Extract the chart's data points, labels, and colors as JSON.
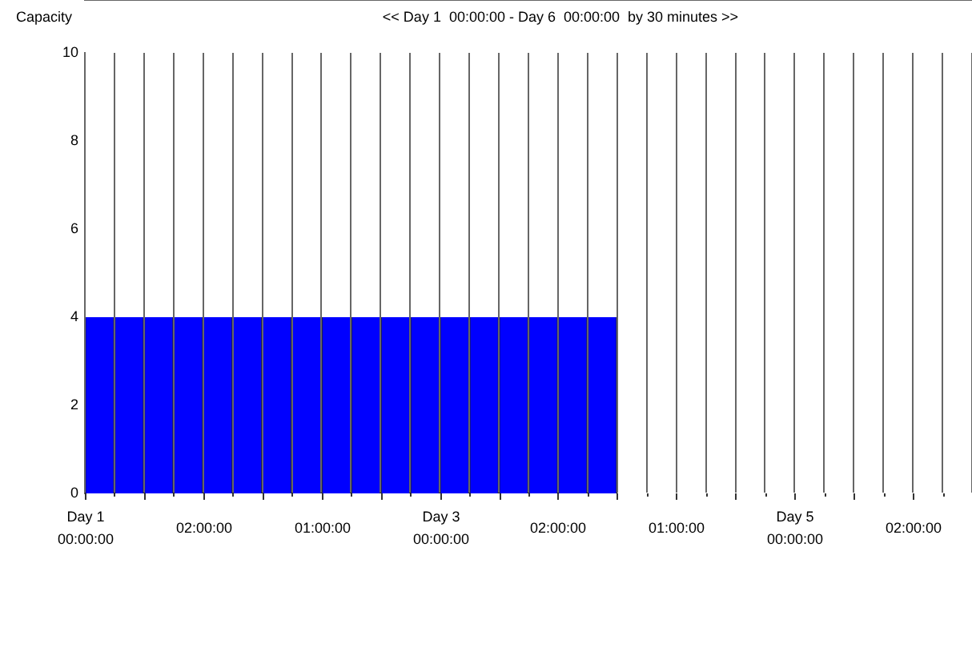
{
  "chart_data": {
    "type": "bar",
    "title": "<< Day 1  00:00:00 - Day 6  00:00:00  by 30 minutes >>",
    "ylabel": "Capacity",
    "categories": [
      "Day 1\n00:00:00",
      null,
      null,
      null,
      "02:00:00",
      null,
      null,
      null,
      "01:00:00",
      null,
      null,
      null,
      "Day 3\n00:00:00",
      null,
      null,
      null,
      "02:00:00",
      null,
      null,
      null,
      "01:00:00",
      null,
      null,
      null,
      "Day 5\n00:00:00",
      null,
      null,
      null,
      "02:00:00",
      null
    ],
    "series": [
      {
        "color": "#0000ff",
        "values": [
          4,
          4,
          4,
          4,
          4,
          4,
          4,
          4,
          4,
          4,
          4,
          4,
          4,
          4,
          4,
          4,
          4,
          4,
          null,
          null,
          null,
          null,
          null,
          null,
          null,
          null,
          null,
          null,
          null,
          null
        ]
      }
    ],
    "ylim": [
      0,
      10
    ],
    "yticks": [
      0,
      2,
      4,
      6,
      8,
      10
    ],
    "grid": "x",
    "legend": false
  }
}
